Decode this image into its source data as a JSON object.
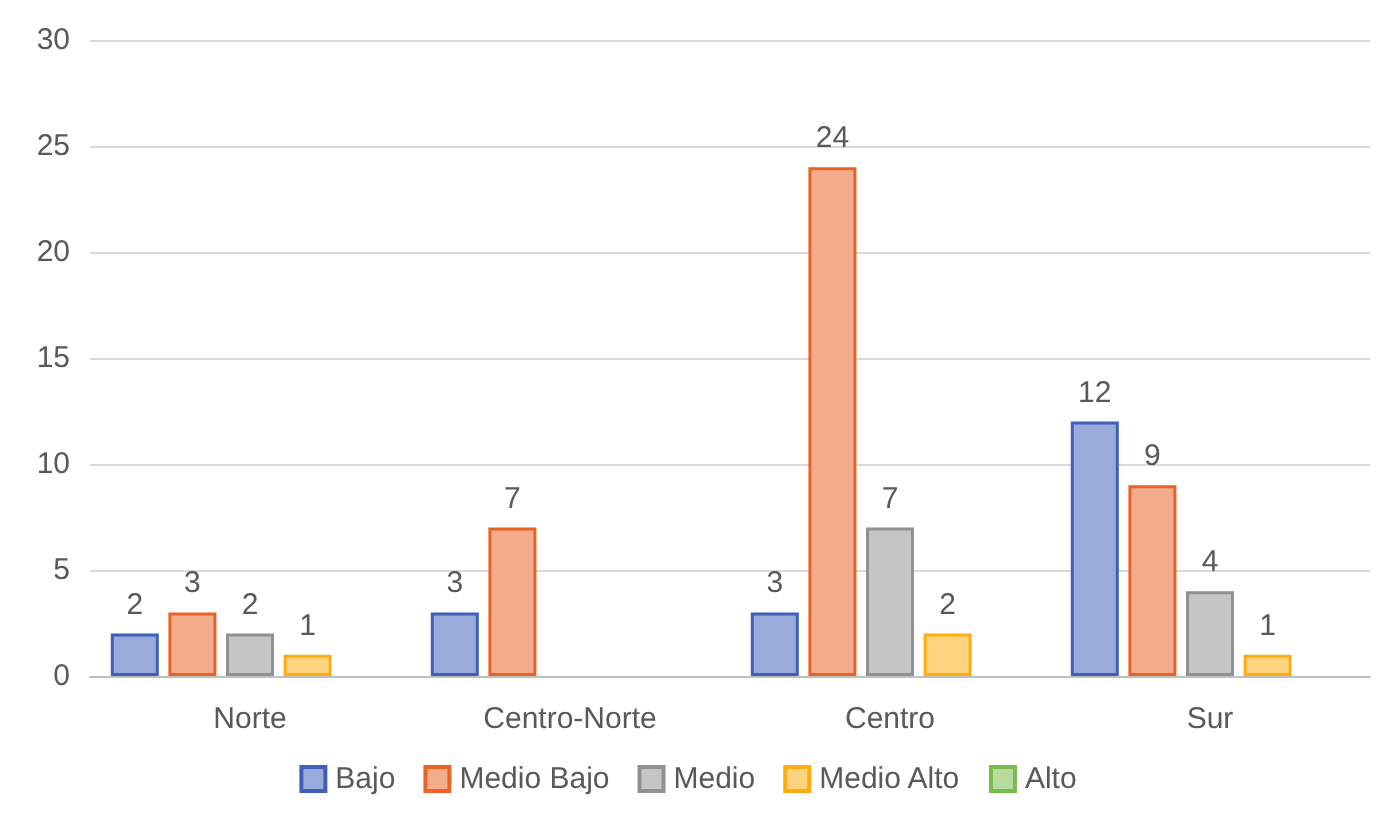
{
  "chart_data": {
    "type": "bar",
    "categories": [
      "Norte",
      "Centro-Norte",
      "Centro",
      "Sur"
    ],
    "series": [
      {
        "name": "Bajo",
        "color": "#9aabdb",
        "values": [
          2,
          3,
          3,
          12
        ]
      },
      {
        "name": "Medio Bajo",
        "color": "#f4ad8c",
        "values": [
          3,
          7,
          24,
          9
        ]
      },
      {
        "name": "Medio",
        "color": "#c5c5c5",
        "values": [
          2,
          null,
          7,
          4
        ]
      },
      {
        "name": "Medio Alto",
        "color": "#ffd47f",
        "values": [
          1,
          null,
          2,
          1
        ]
      },
      {
        "name": "Alto",
        "color": "#b8dca0",
        "values": [
          null,
          null,
          null,
          null
        ]
      }
    ],
    "ylim": [
      0,
      30
    ],
    "yticks": [
      0,
      5,
      10,
      15,
      20,
      25,
      30
    ],
    "grid": "y",
    "legend": "bottom",
    "data_labels": true
  }
}
